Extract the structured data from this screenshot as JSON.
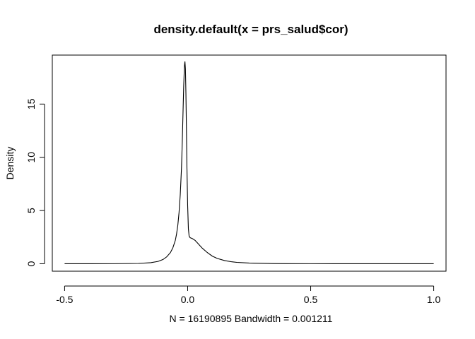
{
  "chart_data": {
    "type": "line",
    "title": "density.default(x = prs_salud$cor)",
    "xlabel": "N = 16190895   Bandwidth = 0.001211",
    "ylabel": "Density",
    "xlim": [
      -0.55,
      1.05
    ],
    "ylim": [
      -0.7,
      19.6
    ],
    "x_ticks": [
      -0.5,
      0.0,
      0.5,
      1.0
    ],
    "x_tick_labels": [
      "-0.5",
      "0.0",
      "0.5",
      "1.0"
    ],
    "y_ticks": [
      0,
      5,
      10,
      15
    ],
    "y_tick_labels": [
      "0",
      "5",
      "10",
      "15"
    ],
    "grid": false,
    "legend": "none",
    "series": [
      {
        "color": "#000000",
        "x": [
          -0.5,
          -0.4,
          -0.3,
          -0.2,
          -0.15,
          -0.12,
          -0.1,
          -0.085,
          -0.07,
          -0.06,
          -0.05,
          -0.045,
          -0.04,
          -0.035,
          -0.03,
          -0.025,
          -0.022,
          -0.019,
          -0.016,
          -0.013,
          -0.011,
          -0.009,
          -0.007,
          -0.005,
          -0.003,
          0.0,
          0.003,
          0.006,
          0.01,
          0.015,
          0.02,
          0.03,
          0.04,
          0.05,
          0.06,
          0.08,
          0.1,
          0.12,
          0.15,
          0.18,
          0.2,
          0.25,
          0.3,
          0.35,
          0.4,
          0.5,
          0.6,
          0.7,
          0.8,
          0.9,
          1.0
        ],
        "y": [
          0.0,
          0.0,
          0.005,
          0.03,
          0.1,
          0.22,
          0.4,
          0.65,
          1.05,
          1.5,
          2.2,
          2.8,
          3.6,
          4.8,
          6.5,
          9.0,
          11.3,
          14.0,
          16.7,
          18.6,
          19.0,
          18.3,
          16.0,
          12.8,
          9.2,
          5.5,
          3.3,
          2.6,
          2.45,
          2.4,
          2.35,
          2.2,
          1.95,
          1.7,
          1.45,
          1.05,
          0.72,
          0.5,
          0.3,
          0.18,
          0.13,
          0.07,
          0.04,
          0.02,
          0.01,
          0.005,
          0.0,
          0.0,
          0.0,
          0.0,
          0.0
        ]
      }
    ]
  }
}
